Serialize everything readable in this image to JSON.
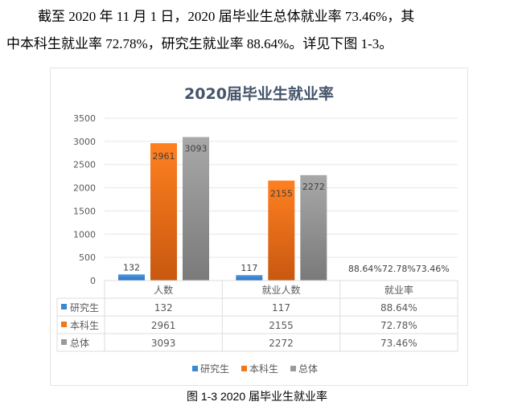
{
  "paragraph": {
    "line1": "截至 2020 年 11 月 1 日，2020 届毕业生总体就业率 73.46%，其",
    "line2": "中本科生就业率 72.78%，研究生就业率 88.64%。详见下图 1-3。"
  },
  "caption": "图 1-3 2020 届毕业生就业率",
  "chart_data": {
    "type": "bar",
    "title": "2020届毕业生就业率",
    "categories": [
      "人数",
      "就业人数",
      "就业率"
    ],
    "series": [
      {
        "name": "研究生",
        "values": [
          132,
          117,
          0.8864
        ],
        "labels": [
          "132",
          "117",
          "88.64%"
        ],
        "color": "#3a87d4"
      },
      {
        "name": "本科生",
        "values": [
          2961,
          2155,
          0.7278
        ],
        "labels": [
          "2961",
          "2155",
          "72.78%"
        ],
        "color": "#f07818"
      },
      {
        "name": "总体",
        "values": [
          3093,
          2272,
          0.7346
        ],
        "labels": [
          "3093",
          "2272",
          "73.46%"
        ],
        "color": "#9a9a9a"
      }
    ],
    "ylim": [
      0,
      3500
    ],
    "yticks": [
      "0",
      "500",
      "1000",
      "1500",
      "2000",
      "2500",
      "3000",
      "3500"
    ],
    "grid": true,
    "data_table": true,
    "legend": "bottom"
  }
}
